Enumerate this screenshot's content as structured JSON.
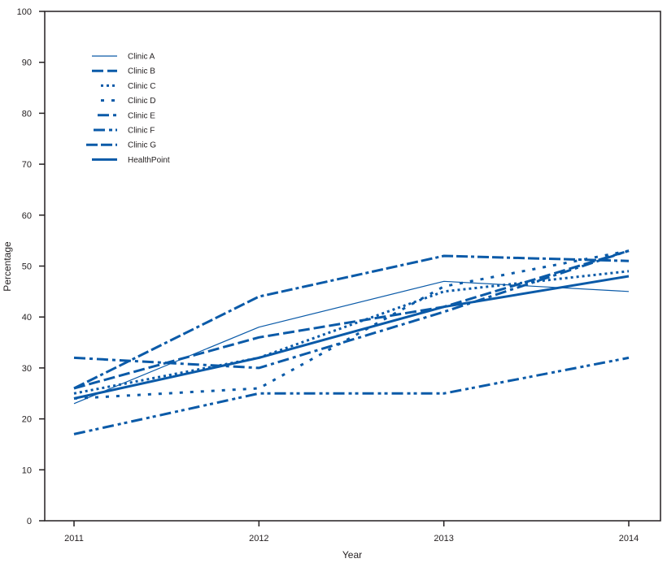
{
  "chart_data": {
    "type": "line",
    "title": "",
    "xlabel": "Year",
    "ylabel": "Percentage",
    "x": [
      "2011",
      "2012",
      "2013",
      "2014"
    ],
    "ylim": [
      0,
      100
    ],
    "yticks": [
      0,
      10,
      20,
      30,
      40,
      50,
      60,
      70,
      80,
      90,
      100
    ],
    "grid": false,
    "legend_position": "upper-left",
    "line_color": "#0a5aa8",
    "series": [
      {
        "name": "Clinic A",
        "style": "solid-thin",
        "values": [
          23,
          38,
          47,
          45
        ]
      },
      {
        "name": "Clinic B",
        "style": "long-dash",
        "values": [
          26,
          36,
          42,
          53
        ]
      },
      {
        "name": "Clinic C",
        "style": "dense-dot",
        "values": [
          25,
          32,
          45,
          49
        ]
      },
      {
        "name": "Clinic D",
        "style": "sparse-dot",
        "values": [
          24,
          26,
          46,
          53
        ]
      },
      {
        "name": "Clinic E",
        "style": "dash-dot",
        "values": [
          32,
          30,
          41,
          53
        ]
      },
      {
        "name": "Clinic F",
        "style": "dash-dot-dot",
        "values": [
          17,
          25,
          25,
          32
        ]
      },
      {
        "name": "Clinic G",
        "style": "dash-dash-dot",
        "values": [
          26,
          44,
          52,
          51
        ]
      },
      {
        "name": "HealthPoint",
        "style": "solid-thick",
        "values": [
          24,
          32,
          42,
          48
        ]
      }
    ]
  }
}
